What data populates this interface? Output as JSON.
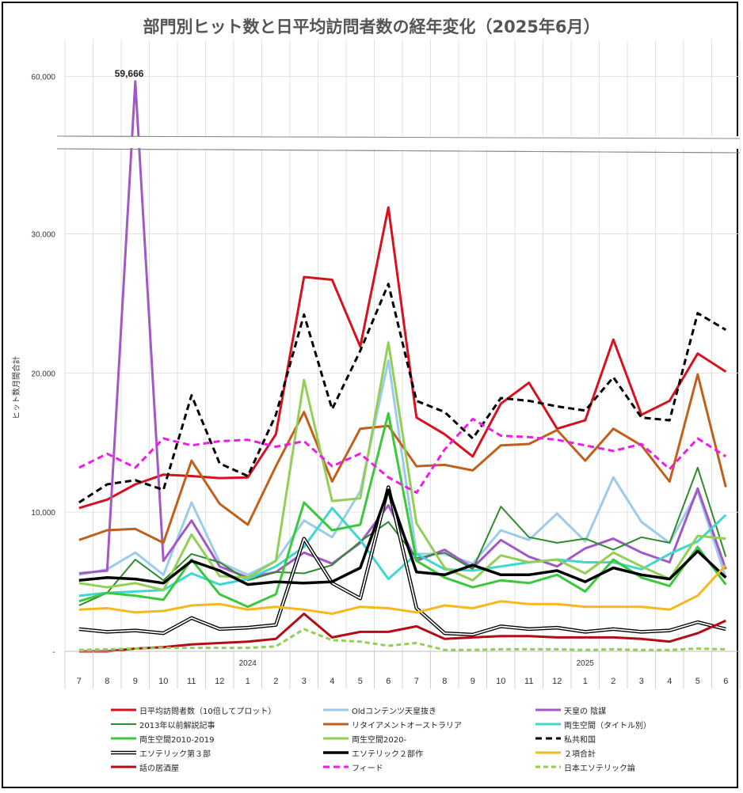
{
  "chart_data": {
    "type": "line",
    "title": "部門別ヒット数と日平均訪問者数の経年変化（2025年6月）",
    "ylabel": "ヒット数月間合計",
    "ylim": [
      0,
      62000
    ],
    "yticks": [
      {
        "value": 0,
        "label": "-"
      },
      {
        "value": 10000,
        "label": "10,000"
      },
      {
        "value": 20000,
        "label": "20,000"
      },
      {
        "value": 30000,
        "label": "30,000"
      },
      {
        "value": 60000,
        "label": "60,000"
      }
    ],
    "axis_break": [
      36000,
      56000
    ],
    "categories": [
      "7",
      "8",
      "9",
      "10",
      "11",
      "12",
      "1",
      "2",
      "3",
      "4",
      "5",
      "6",
      "7",
      "8",
      "9",
      "10",
      "11",
      "12",
      "1",
      "2",
      "3",
      "4",
      "5",
      "6"
    ],
    "year_labels": [
      {
        "label": "2024",
        "index": 6
      },
      {
        "label": "2025",
        "index": 18
      }
    ],
    "peak_label": {
      "text": "59,666",
      "series": 2,
      "index": 2
    },
    "series": [
      {
        "name": "日平均訪問者数（10倍してプロット）",
        "color": "#d6121e",
        "width": 3,
        "dash": "",
        "values": [
          10300,
          10900,
          12000,
          12700,
          12600,
          12450,
          12500,
          15600,
          26900,
          26700,
          21900,
          31900,
          16800,
          15600,
          14000,
          17800,
          19300,
          16000,
          16600,
          22400,
          17000,
          18000,
          21400,
          20100
        ]
      },
      {
        "name": "Oldコンテンツ天皇抜き",
        "color": "#9dcbec",
        "width": 3,
        "dash": "",
        "values": [
          5500,
          5900,
          7100,
          5500,
          10700,
          6400,
          5500,
          6500,
          9400,
          8200,
          11500,
          20900,
          7000,
          7000,
          6300,
          8700,
          8000,
          9900,
          7900,
          12500,
          9300,
          7800,
          11500,
          5300
        ]
      },
      {
        "name": "天皇の 陰謀",
        "color": "#a259c4",
        "width": 3,
        "dash": "",
        "values": [
          5600,
          5800,
          59666,
          6500,
          9400,
          6100,
          5300,
          5700,
          7100,
          6300,
          7800,
          10500,
          6500,
          7300,
          6000,
          8000,
          6800,
          6100,
          7400,
          8100,
          7100,
          6400,
          11700,
          5900
        ]
      },
      {
        "name": "2013年以前解説記事",
        "color": "#2e8b2e",
        "width": 2,
        "dash": "",
        "values": [
          3300,
          4200,
          6600,
          5100,
          7000,
          6400,
          5100,
          5700,
          5600,
          6200,
          7900,
          9300,
          6700,
          7100,
          5900,
          10400,
          8200,
          7800,
          8100,
          7300,
          8200,
          7800,
          13200,
          6800
        ]
      },
      {
        "name": "リタイアメントオーストラリア",
        "color": "#c0601c",
        "width": 3,
        "dash": "",
        "values": [
          8000,
          8700,
          8800,
          7800,
          13700,
          10600,
          9100,
          13300,
          17200,
          12200,
          16000,
          16200,
          13300,
          13400,
          13000,
          14800,
          14900,
          15900,
          13700,
          16000,
          14800,
          12200,
          19900,
          11800
        ]
      },
      {
        "name": "両生空間（タイトル別）",
        "color": "#3fd8cf",
        "width": 3,
        "dash": "",
        "values": [
          4000,
          4200,
          4300,
          4400,
          5600,
          4800,
          5200,
          6100,
          7500,
          10300,
          8000,
          5200,
          7000,
          5900,
          5800,
          6100,
          6400,
          6600,
          6400,
          6400,
          5900,
          7000,
          7900,
          9800
        ]
      },
      {
        "name": "両生空間2010-2019",
        "color": "#3cc83c",
        "width": 3,
        "dash": "",
        "values": [
          3600,
          4200,
          4000,
          3700,
          6600,
          4100,
          3200,
          4100,
          10700,
          8700,
          9100,
          17100,
          6500,
          5300,
          4600,
          5100,
          4900,
          5500,
          4300,
          6600,
          5300,
          4700,
          7500,
          4800
        ]
      },
      {
        "name": "両生空間2020-",
        "color": "#93cf55",
        "width": 3,
        "dash": "",
        "values": [
          4900,
          4600,
          4900,
          4400,
          8400,
          5400,
          5300,
          6500,
          19500,
          10800,
          11000,
          22200,
          9200,
          6000,
          5100,
          6900,
          6400,
          6600,
          5600,
          7100,
          6100,
          5200,
          8300,
          8100
        ]
      },
      {
        "name": "私共和国",
        "color": "#000000",
        "width": 3,
        "dash": "8,5",
        "values": [
          10700,
          12000,
          12300,
          11600,
          18400,
          13500,
          12600,
          17000,
          24200,
          17400,
          21600,
          26400,
          18000,
          17200,
          15300,
          18200,
          18000,
          17600,
          17300,
          19700,
          16800,
          16600,
          24300,
          23100
        ]
      },
      {
        "name": "エソテリック第３部",
        "color": "#000000",
        "width": 3,
        "dash": "",
        "double": true,
        "values": [
          1600,
          1400,
          1500,
          1300,
          2400,
          1600,
          1700,
          1900,
          8100,
          4900,
          3800,
          11800,
          3100,
          1300,
          1200,
          1800,
          1600,
          1700,
          1400,
          1600,
          1400,
          1500,
          2100,
          1600
        ]
      },
      {
        "name": "エソテリック２部作",
        "color": "#000000",
        "width": 3.5,
        "dash": "",
        "values": [
          5100,
          5300,
          5200,
          4900,
          6500,
          5800,
          4800,
          5000,
          4900,
          5000,
          6000,
          11600,
          5700,
          5500,
          6200,
          5500,
          5500,
          5800,
          5000,
          6000,
          5500,
          5200,
          7200,
          5300
        ]
      },
      {
        "name": "２項合計",
        "color": "#f6b81e",
        "width": 3,
        "dash": "",
        "values": [
          3000,
          3100,
          2800,
          2900,
          3300,
          3400,
          3000,
          3200,
          3000,
          2700,
          3200,
          3100,
          2800,
          3300,
          3100,
          3600,
          3400,
          3400,
          3200,
          3200,
          3200,
          3000,
          4000,
          6200
        ]
      },
      {
        "name": "話の居酒屋",
        "color": "#b40c16",
        "width": 3,
        "dash": "",
        "values": [
          0,
          0,
          200,
          300,
          500,
          600,
          700,
          900,
          2700,
          1000,
          1400,
          1400,
          1800,
          900,
          1000,
          1100,
          1100,
          1000,
          1000,
          1000,
          900,
          700,
          1300,
          2200
        ]
      },
      {
        "name": "フィード",
        "color": "#ee1ce6",
        "width": 3,
        "dash": "8,5",
        "values": [
          13200,
          14200,
          13200,
          15300,
          14800,
          15100,
          15200,
          14700,
          15100,
          13300,
          14200,
          12500,
          11400,
          14500,
          16700,
          15500,
          15400,
          15200,
          14800,
          14400,
          14900,
          13100,
          15300,
          14000
        ]
      },
      {
        "name": "日本エソテリック論",
        "color": "#93cf55",
        "width": 3,
        "dash": "6,4",
        "values": [
          100,
          150,
          200,
          250,
          250,
          250,
          250,
          350,
          1600,
          800,
          700,
          400,
          600,
          100,
          100,
          150,
          150,
          150,
          100,
          150,
          100,
          100,
          200,
          150
        ]
      }
    ],
    "grid": true,
    "legend_position": "bottom"
  }
}
